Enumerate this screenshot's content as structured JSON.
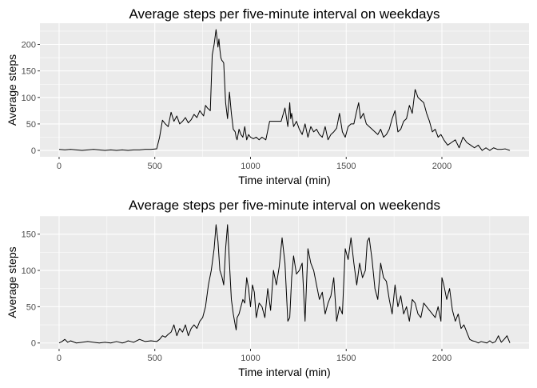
{
  "chart_data": [
    {
      "type": "line",
      "title": "Average steps per five-minute interval on weekdays",
      "xlabel": "Time interval (min)",
      "ylabel": "Average steps",
      "xlim": [
        -100,
        2455
      ],
      "ylim": [
        -12,
        240
      ],
      "xticks": [
        0,
        500,
        1000,
        1500,
        2000
      ],
      "yticks": [
        0,
        50,
        100,
        150,
        200
      ],
      "grid": true,
      "legend": "none",
      "series": [
        {
          "x": [
            0,
            30,
            60,
            90,
            120,
            150,
            180,
            210,
            240,
            270,
            300,
            330,
            360,
            390,
            420,
            450,
            480,
            510,
            525,
            540,
            555,
            570,
            585,
            600,
            615,
            630,
            645,
            660,
            675,
            690,
            705,
            720,
            735,
            745,
            755,
            765,
            775,
            790,
            800,
            810,
            820,
            830,
            835,
            840,
            845,
            850,
            855,
            860,
            870,
            880,
            890,
            900,
            910,
            920,
            925,
            930,
            940,
            950,
            960,
            970,
            980,
            990,
            1000,
            1015,
            1030,
            1045,
            1060,
            1080,
            1100,
            1120,
            1140,
            1160,
            1180,
            1195,
            1205,
            1210,
            1215,
            1225,
            1240,
            1255,
            1270,
            1285,
            1300,
            1315,
            1330,
            1345,
            1360,
            1375,
            1390,
            1405,
            1420,
            1435,
            1450,
            1465,
            1480,
            1495,
            1510,
            1525,
            1540,
            1555,
            1565,
            1575,
            1590,
            1605,
            1620,
            1635,
            1650,
            1665,
            1680,
            1695,
            1710,
            1725,
            1740,
            1755,
            1770,
            1785,
            1800,
            1815,
            1830,
            1845,
            1860,
            1875,
            1890,
            1905,
            1920,
            1935,
            1950,
            1965,
            1980,
            1995,
            2010,
            2030,
            2050,
            2070,
            2090,
            2110,
            2130,
            2150,
            2170,
            2190,
            2210,
            2230,
            2250,
            2270,
            2290,
            2310,
            2330,
            2355
          ],
          "y": [
            2,
            1,
            2,
            1,
            0,
            1,
            2,
            1,
            0,
            1,
            0,
            1,
            0,
            1,
            1,
            2,
            2,
            3,
            25,
            57,
            50,
            45,
            72,
            55,
            65,
            50,
            55,
            62,
            52,
            58,
            68,
            62,
            75,
            70,
            65,
            85,
            80,
            75,
            180,
            200,
            228,
            195,
            210,
            190,
            175,
            170,
            168,
            165,
            90,
            60,
            110,
            70,
            40,
            35,
            25,
            20,
            40,
            30,
            25,
            45,
            20,
            30,
            25,
            22,
            25,
            20,
            25,
            20,
            55,
            55,
            55,
            55,
            80,
            45,
            90,
            60,
            70,
            45,
            55,
            40,
            30,
            50,
            25,
            45,
            35,
            40,
            30,
            25,
            45,
            20,
            30,
            35,
            42,
            70,
            35,
            25,
            45,
            50,
            50,
            75,
            90,
            60,
            70,
            50,
            45,
            40,
            35,
            30,
            40,
            25,
            30,
            40,
            60,
            75,
            35,
            40,
            55,
            60,
            85,
            70,
            115,
            100,
            95,
            90,
            70,
            55,
            35,
            40,
            25,
            30,
            20,
            10,
            15,
            20,
            5,
            25,
            15,
            10,
            5,
            10,
            0,
            5,
            0,
            5,
            2,
            2,
            3,
            0
          ]
        }
      ]
    },
    {
      "type": "line",
      "title": "Average steps per five-minute interval on weekends",
      "xlabel": "Time interval (min)",
      "ylabel": "Average steps",
      "xlim": [
        -100,
        2455
      ],
      "ylim": [
        -8,
        175
      ],
      "xticks": [
        0,
        500,
        1000,
        1500,
        2000
      ],
      "yticks": [
        0,
        50,
        100,
        150
      ],
      "grid": true,
      "legend": "none",
      "series": [
        {
          "x": [
            0,
            15,
            30,
            45,
            60,
            90,
            120,
            150,
            180,
            210,
            240,
            270,
            300,
            330,
            345,
            360,
            375,
            390,
            420,
            450,
            480,
            510,
            525,
            540,
            555,
            570,
            585,
            600,
            615,
            630,
            645,
            660,
            675,
            690,
            705,
            720,
            735,
            750,
            765,
            780,
            795,
            810,
            820,
            830,
            840,
            850,
            860,
            870,
            880,
            890,
            900,
            910,
            920,
            925,
            930,
            940,
            950,
            960,
            970,
            980,
            990,
            1000,
            1010,
            1020,
            1030,
            1045,
            1060,
            1075,
            1090,
            1105,
            1120,
            1135,
            1150,
            1165,
            1180,
            1195,
            1205,
            1215,
            1225,
            1240,
            1255,
            1270,
            1285,
            1300,
            1315,
            1330,
            1345,
            1360,
            1375,
            1390,
            1405,
            1420,
            1435,
            1450,
            1465,
            1480,
            1495,
            1510,
            1525,
            1540,
            1555,
            1570,
            1585,
            1600,
            1610,
            1620,
            1635,
            1650,
            1665,
            1680,
            1695,
            1710,
            1725,
            1740,
            1755,
            1770,
            1785,
            1800,
            1815,
            1830,
            1845,
            1860,
            1875,
            1890,
            1905,
            1920,
            1935,
            1950,
            1965,
            1980,
            1995,
            2000,
            2010,
            2025,
            2040,
            2055,
            2070,
            2085,
            2100,
            2115,
            2130,
            2145,
            2160,
            2175,
            2190,
            2205,
            2220,
            2235,
            2250,
            2265,
            2280,
            2295,
            2310,
            2325,
            2340,
            2355
          ],
          "y": [
            0,
            2,
            5,
            1,
            3,
            0,
            1,
            2,
            1,
            0,
            1,
            0,
            2,
            0,
            1,
            3,
            2,
            1,
            5,
            2,
            3,
            2,
            5,
            10,
            8,
            12,
            15,
            25,
            10,
            20,
            15,
            25,
            10,
            20,
            25,
            20,
            30,
            35,
            50,
            80,
            100,
            130,
            163,
            140,
            100,
            92,
            80,
            130,
            163,
            110,
            60,
            40,
            25,
            18,
            35,
            40,
            50,
            60,
            55,
            90,
            75,
            50,
            80,
            70,
            35,
            55,
            50,
            35,
            75,
            45,
            100,
            80,
            105,
            145,
            110,
            30,
            35,
            90,
            120,
            95,
            100,
            110,
            30,
            130,
            110,
            100,
            80,
            60,
            70,
            40,
            55,
            65,
            90,
            30,
            50,
            40,
            130,
            115,
            145,
            110,
            80,
            110,
            90,
            100,
            140,
            145,
            115,
            75,
            60,
            110,
            90,
            85,
            60,
            40,
            80,
            50,
            65,
            40,
            50,
            30,
            60,
            55,
            40,
            35,
            55,
            50,
            45,
            40,
            35,
            50,
            30,
            90,
            80,
            60,
            75,
            45,
            30,
            40,
            20,
            25,
            15,
            5,
            3,
            2,
            0,
            2,
            1,
            0,
            3,
            0,
            2,
            10,
            1,
            5,
            10,
            0
          ]
        }
      ]
    }
  ]
}
